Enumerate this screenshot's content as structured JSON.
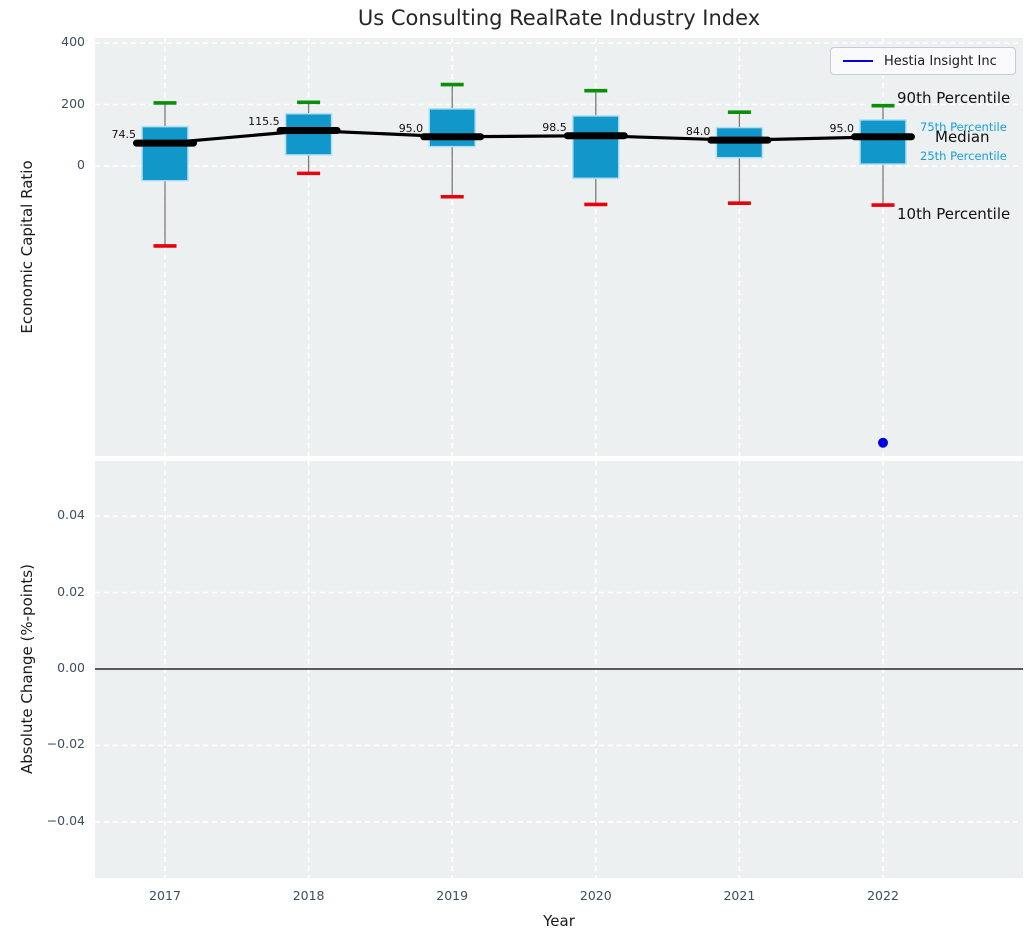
{
  "title": "Us Consulting RealRate Industry Index",
  "legend": {
    "label": "Hestia Insight Inc"
  },
  "annotations": {
    "p90": "90th Percentile",
    "p75": "75th Percentile",
    "median": "Median",
    "p25": "25th Percentile",
    "p10": "10th Percentile"
  },
  "chart_data": {
    "type": "box",
    "title": "Us Consulting RealRate Industry Index",
    "categories": [
      "2017",
      "2018",
      "2019",
      "2020",
      "2021",
      "2022"
    ],
    "xlabel": "Year",
    "grid": true,
    "legend_position": "upper right",
    "panels": [
      {
        "name": "economic-capital-ratio",
        "ylabel": "Economic Capital Ratio",
        "ylim": [
          -943,
          416
        ],
        "yticks": [
          {
            "value": 400,
            "label": "400"
          },
          {
            "value": 200,
            "label": "200"
          },
          {
            "value": 0,
            "label": "0"
          }
        ],
        "boxes": [
          {
            "category": "2017",
            "p10": -260,
            "p25": -48,
            "median": 74.5,
            "p75": 128,
            "p90": 205,
            "median_label": "74.5"
          },
          {
            "category": "2018",
            "p10": -24,
            "p25": 36,
            "median": 115.5,
            "p75": 170,
            "p90": 207,
            "median_label": "115.5"
          },
          {
            "category": "2019",
            "p10": -100,
            "p25": 63,
            "median": 95.0,
            "p75": 186,
            "p90": 265,
            "median_label": "95.0"
          },
          {
            "category": "2020",
            "p10": -125,
            "p25": -40,
            "median": 98.5,
            "p75": 163,
            "p90": 245,
            "median_label": "98.5"
          },
          {
            "category": "2021",
            "p10": -121,
            "p25": 27,
            "median": 84.0,
            "p75": 125,
            "p90": 175,
            "median_label": "84.0"
          },
          {
            "category": "2022",
            "p10": -127,
            "p25": 6,
            "median": 95.0,
            "p75": 150,
            "p90": 196,
            "median_label": "95.0"
          }
        ],
        "company_series": {
          "name": "Hestia Insight Inc",
          "points": [
            {
              "category": "2022",
              "value": -900
            }
          ]
        }
      },
      {
        "name": "absolute-change",
        "ylabel": "Absolute Change (%-points)",
        "ylim": [
          -0.055,
          0.055
        ],
        "yticks": [
          {
            "value": 0.04,
            "label": "0.04"
          },
          {
            "value": 0.02,
            "label": "0.02"
          },
          {
            "value": 0.0,
            "label": "0.00"
          },
          {
            "value": -0.02,
            "label": "−0.02"
          },
          {
            "value": -0.04,
            "label": "−0.04"
          }
        ],
        "zero_line": 0.0,
        "boxes": [],
        "company_series": {
          "name": "Hestia Insight Inc",
          "points": []
        }
      }
    ],
    "colors": {
      "box_fill": "#1297cb",
      "box_edge": "#b3e0f2",
      "p90_cap": "#0a8f0a",
      "p10_cap": "#e8000d",
      "whisker": "#7a7a7a",
      "median_line": "#000000",
      "company": "#0000e0",
      "plot_bg": "#ecf0f1",
      "grid": "#ffffff",
      "tick_text": "#3d4e60",
      "annotation_small": "#189ed6"
    }
  }
}
